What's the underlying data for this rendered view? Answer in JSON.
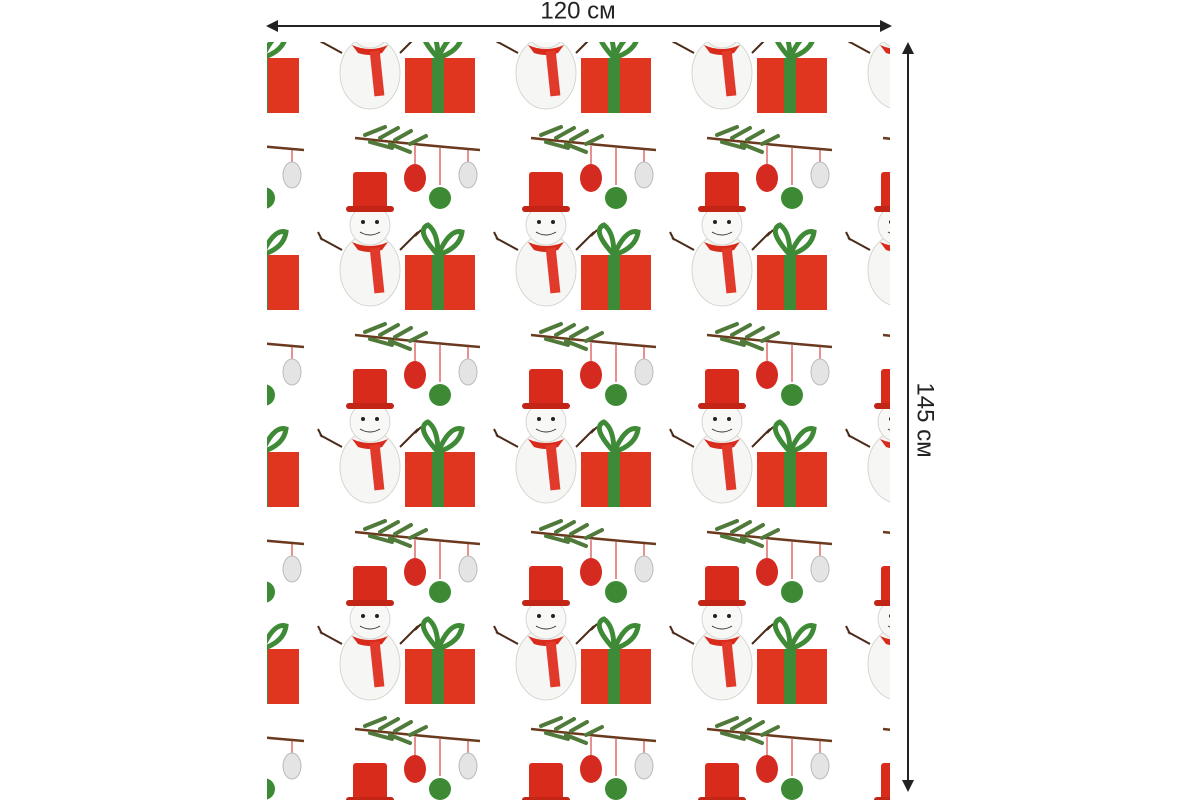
{
  "dimensions": {
    "width": "120 см",
    "height": "145 см"
  }
}
